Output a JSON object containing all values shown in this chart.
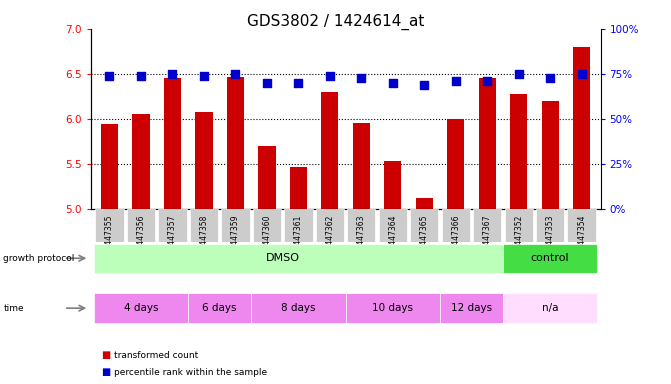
{
  "title": "GDS3802 / 1424614_at",
  "samples": [
    "GSM447355",
    "GSM447356",
    "GSM447357",
    "GSM447358",
    "GSM447359",
    "GSM447360",
    "GSM447361",
    "GSM447362",
    "GSM447363",
    "GSM447364",
    "GSM447365",
    "GSM447366",
    "GSM447367",
    "GSM447352",
    "GSM447353",
    "GSM447354"
  ],
  "transformed_count": [
    5.95,
    6.06,
    6.46,
    6.08,
    6.47,
    5.7,
    5.47,
    6.3,
    5.96,
    5.53,
    5.13,
    6.0,
    6.45,
    6.28,
    6.2,
    6.8
  ],
  "percentile_rank": [
    74,
    74,
    75,
    74,
    75,
    70,
    70,
    74,
    73,
    70,
    69,
    71,
    71,
    75,
    73,
    75
  ],
  "ylim_left": [
    5.0,
    7.0
  ],
  "ylim_right": [
    0,
    100
  ],
  "yticks_left": [
    5.0,
    5.5,
    6.0,
    6.5,
    7.0
  ],
  "yticks_right": [
    0,
    25,
    50,
    75,
    100
  ],
  "bar_color": "#cc0000",
  "dot_color": "#0000cc",
  "title_fontsize": 11,
  "axis_label_color_left": "red",
  "axis_label_color_right": "blue",
  "tick_bg": "#cccccc",
  "dmso_color": "#bbffbb",
  "control_color": "#44dd44",
  "time_color_alt": "#ee88ee",
  "time_color_na": "#ffddff",
  "legend_items": [
    {
      "label": "transformed count",
      "color": "#cc0000"
    },
    {
      "label": "percentile rank within the sample",
      "color": "#0000cc"
    }
  ],
  "time_groups": [
    {
      "label": "4 days",
      "start": 0,
      "end": 2
    },
    {
      "label": "6 days",
      "start": 3,
      "end": 4
    },
    {
      "label": "8 days",
      "start": 5,
      "end": 7
    },
    {
      "label": "10 days",
      "start": 8,
      "end": 10
    },
    {
      "label": "12 days",
      "start": 11,
      "end": 12
    },
    {
      "label": "n/a",
      "start": 13,
      "end": 15
    }
  ]
}
